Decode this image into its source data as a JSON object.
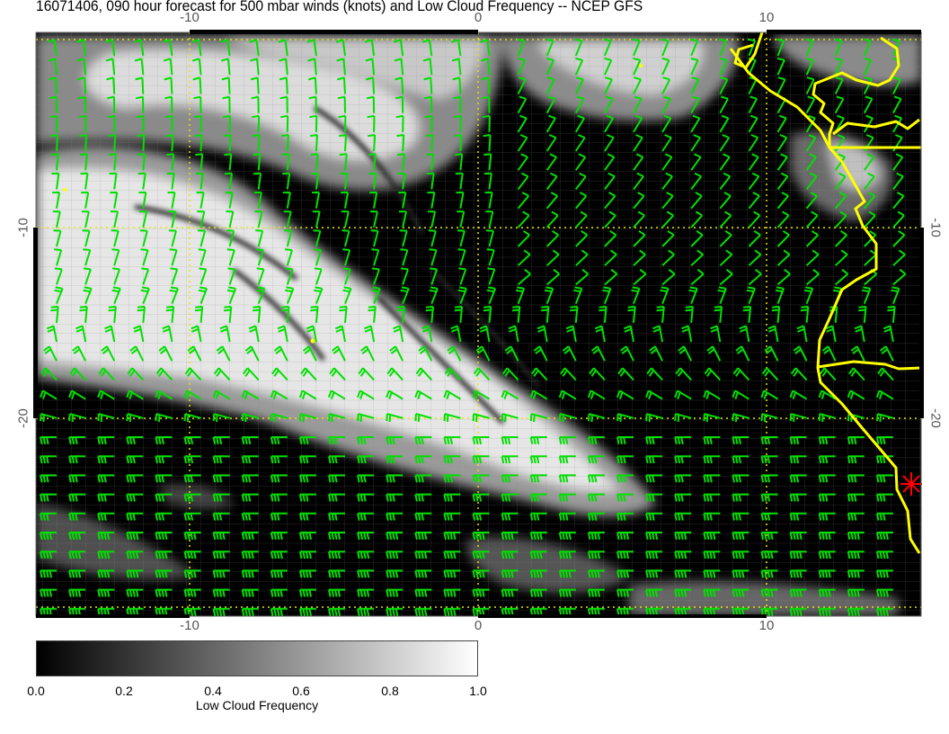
{
  "title": "16071406, 090 hour forecast for 500 mbar winds (knots) and Low Cloud Frequency -- NCEP GFS",
  "x_axis": {
    "ticks": [
      "-10",
      "0",
      "10"
    ],
    "values": [
      -10,
      0,
      10
    ]
  },
  "y_axis": {
    "ticks": [
      "-10",
      "-20"
    ],
    "values": [
      -10,
      -20
    ]
  },
  "colorbar": {
    "label": "Low Cloud Frequency",
    "ticks": [
      "0.0",
      "0.2",
      "0.4",
      "0.6",
      "0.8",
      "1.0"
    ],
    "range": [
      0.0,
      1.0
    ],
    "colormap": "grayscale black-to-white"
  },
  "colors": {
    "wind_barbs": "#00e000",
    "coastline": "#ffff00",
    "graticule_dotted": "#e6e600",
    "marker": "#ff0000",
    "background": "#000000"
  },
  "marker_icon": "red-asterisk"
}
